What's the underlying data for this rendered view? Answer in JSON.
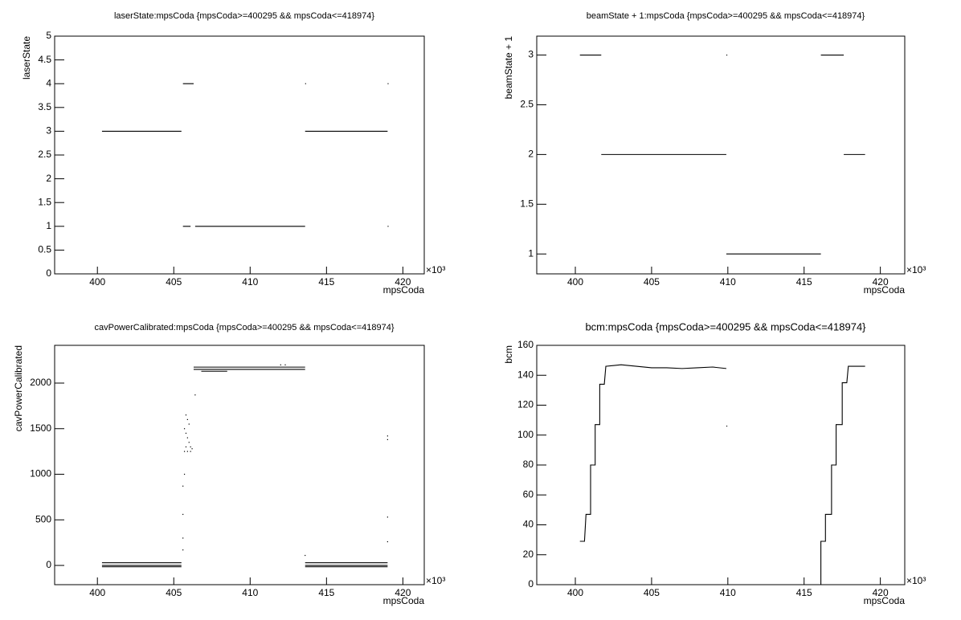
{
  "chart_data": [
    {
      "type": "line",
      "title": "laserState:mpsCoda {mpsCoda>=400295 && mpsCoda<=418974}",
      "xlabel": "mpsCoda",
      "ylabel": "laserState",
      "x_exponent": "×10³",
      "xlim": [
        397.2,
        421.4
      ],
      "ylim": [
        0,
        5
      ],
      "xticks": [
        400,
        405,
        410,
        415,
        420
      ],
      "yticks": [
        0,
        0.5,
        1,
        1.5,
        2,
        2.5,
        3,
        3.5,
        4,
        4.5,
        5
      ],
      "series": [
        {
          "color": "#000000",
          "style": "line",
          "x": [
            400.3,
            405.5,
            null,
            405.6,
            406.3,
            null,
            405.6,
            406.1,
            null,
            406.4,
            413.6,
            null,
            413.6,
            419.0,
            null,
            413.6,
            null,
            419.0,
            null,
            419.0
          ],
          "values": [
            3,
            3,
            null,
            4,
            4,
            null,
            1,
            1,
            null,
            1,
            1,
            null,
            3,
            3,
            null,
            4,
            null,
            4,
            null,
            1
          ]
        }
      ]
    },
    {
      "type": "line",
      "title": "beamState + 1:mpsCoda {mpsCoda>=400295 && mpsCoda<=418974}",
      "xlabel": "mpsCoda",
      "ylabel": "beamState + 1",
      "x_exponent": "×10³",
      "xlim": [
        397.47,
        421.6
      ],
      "ylim": [
        0.8,
        3.19
      ],
      "xticks": [
        400,
        405,
        410,
        415,
        420
      ],
      "yticks": [
        1,
        1.5,
        2,
        2.5,
        3
      ],
      "series": [
        {
          "color": "#000000",
          "style": "line",
          "x": [
            400.3,
            401.7,
            null,
            401.7,
            409.9,
            null,
            409.9,
            null,
            409.9,
            416.1,
            null,
            416.1,
            417.6,
            null,
            417.6,
            419.0
          ],
          "values": [
            3,
            3,
            null,
            2,
            2,
            null,
            3,
            null,
            1,
            1,
            null,
            3,
            3,
            null,
            2,
            2
          ]
        }
      ]
    },
    {
      "type": "line",
      "title": "cavPowerCalibrated:mpsCoda {mpsCoda>=400295 && mpsCoda<=418974}",
      "xlabel": "mpsCoda",
      "ylabel": "cavPowerCalibrated",
      "x_exponent": "×10³",
      "xlim": [
        397.2,
        421.4
      ],
      "ylim": [
        -211,
        2414
      ],
      "xticks": [
        400,
        405,
        410,
        415,
        420
      ],
      "yticks": [
        0,
        500,
        1000,
        1500,
        2000
      ],
      "series": [
        {
          "color": "#000000",
          "style": "line",
          "x": [
            400.3,
            405.5,
            null,
            400.3,
            405.5,
            null,
            400.3,
            405.5,
            null,
            406.3,
            413.6,
            null,
            406.3,
            413.6,
            null,
            406.8,
            408.5,
            null,
            413.6,
            419.0,
            null,
            413.6,
            419.0,
            null,
            413.6,
            419.0
          ],
          "values": [
            30,
            30,
            null,
            0,
            0,
            null,
            -15,
            -15,
            null,
            2175,
            2175,
            null,
            2150,
            2150,
            null,
            2130,
            2130,
            null,
            30,
            30,
            null,
            0,
            0,
            null,
            -15,
            -15
          ]
        },
        {
          "color": "#000000",
          "style": "points",
          "x": [
            405.6,
            405.6,
            405.6,
            405.6,
            405.7,
            405.7,
            405.7,
            405.8,
            405.8,
            405.8,
            405.9,
            405.9,
            405.9,
            406.0,
            406.0,
            406.1,
            406.1,
            406.2,
            406.4,
            412.0,
            412.3,
            419.0,
            419.0,
            419.0,
            419.0,
            413.6
          ],
          "values": [
            170,
            300,
            560,
            870,
            1000,
            1250,
            1500,
            1300,
            1450,
            1650,
            1250,
            1400,
            1600,
            1350,
            1550,
            1250,
            1300,
            1280,
            1870,
            2200,
            2200,
            1420,
            1380,
            530,
            260,
            110
          ]
        }
      ]
    },
    {
      "type": "line",
      "title": "bcm:mpsCoda {mpsCoda>=400295 && mpsCoda<=418974}",
      "xlabel": "mpsCoda",
      "ylabel": "bcm",
      "x_exponent": "×10³",
      "xlim": [
        397.47,
        421.6
      ],
      "ylim": [
        0,
        160
      ],
      "xticks": [
        400,
        405,
        410,
        415,
        420
      ],
      "yticks": [
        0,
        20,
        40,
        60,
        80,
        100,
        120,
        140,
        160
      ],
      "series": [
        {
          "color": "#000000",
          "style": "line",
          "x": [
            400.3,
            400.6,
            400.7,
            401.0,
            401.0,
            401.3,
            401.3,
            401.6,
            401.6,
            401.9,
            402.0,
            403.0,
            404.0,
            405.0,
            406.0,
            407.0,
            408.0,
            409.0,
            409.9,
            null,
            409.9,
            null,
            415.9,
            416.1,
            416.1,
            416.4,
            416.4,
            416.8,
            416.8,
            417.1,
            417.1,
            417.5,
            417.5,
            417.8,
            417.9,
            419.0
          ],
          "values": [
            29,
            29,
            47,
            47,
            80,
            80,
            107,
            107,
            134,
            134,
            146,
            147,
            146,
            145,
            145,
            144.5,
            145,
            145.5,
            144.5,
            null,
            106,
            null,
            0,
            0,
            29,
            29,
            47,
            47,
            80,
            80,
            107,
            107,
            135,
            135,
            146,
            146
          ]
        }
      ]
    }
  ]
}
